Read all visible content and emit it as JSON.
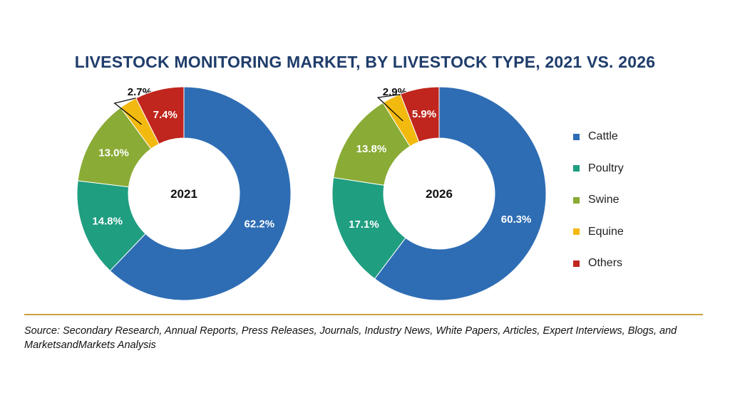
{
  "chart_data": {
    "type": "pie",
    "title": "LIVESTOCK MONITORING MARKET, BY LIVESTOCK TYPE, 2021 VS. 2026",
    "categories": [
      "Cattle",
      "Poultry",
      "Swine",
      "Equine",
      "Others"
    ],
    "colors": {
      "Cattle": "#2e6db4",
      "Poultry": "#1f9e80",
      "Swine": "#8aab35",
      "Equine": "#f2b90f",
      "Others": "#c0261d"
    },
    "charts": [
      {
        "center_label": "2021",
        "values": [
          62.2,
          14.8,
          13.0,
          2.7,
          7.4
        ],
        "labels": [
          "62.2%",
          "14.8%",
          "13.0%",
          "2.7%",
          "7.4%"
        ]
      },
      {
        "center_label": "2026",
        "values": [
          60.3,
          17.1,
          13.8,
          2.9,
          5.9
        ],
        "labels": [
          "60.3%",
          "17.1%",
          "13.8%",
          "2.9%",
          "5.9%"
        ]
      }
    ],
    "legend_position": "right"
  },
  "source_note": "Source: Secondary Research, Annual Reports, Press Releases, Journals, Industry News, White Papers, Articles, Expert Interviews, Blogs, and MarketsandMarkets Analysis",
  "divider_color": "#c9a13c"
}
